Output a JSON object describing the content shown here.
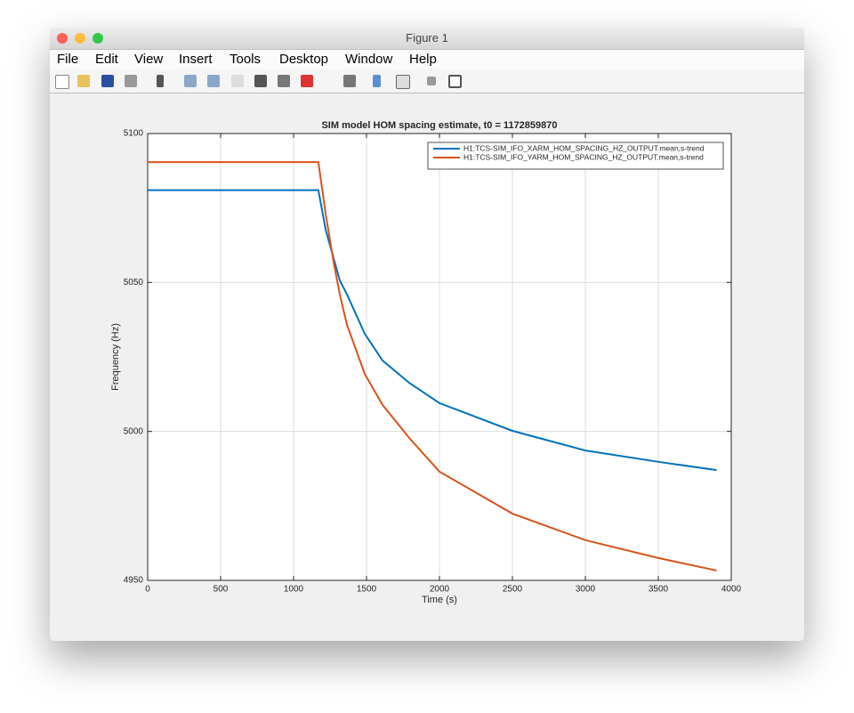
{
  "window": {
    "title": "Figure 1",
    "menu": [
      "File",
      "Edit",
      "View",
      "Insert",
      "Tools",
      "Desktop",
      "Window",
      "Help"
    ]
  },
  "chart_data": {
    "type": "line",
    "title": "SIM model HOM spacing estimate, t0 = 1172859870",
    "xlabel": "Time (s)",
    "ylabel": "Frequency (Hz)",
    "x": [
      0,
      1170,
      1220,
      1275,
      1317,
      1366,
      1488,
      1610,
      1793,
      2000,
      2500,
      3000,
      3500,
      3900
    ],
    "series": [
      {
        "name": "H1:TCS-SIM_IFO_XARM_HOM_SPACING_HZ_OUTPUT.mean,s-trend",
        "color": "#0072bd",
        "values": [
          5081,
          5081,
          5067.7,
          5058,
          5050.7,
          5046,
          5032.8,
          5023.8,
          5016.3,
          5009.5,
          5000.2,
          4993.6,
          4989.8,
          4987
        ]
      },
      {
        "name": "H1:TCS-SIM_IFO_YARM_HOM_SPACING_HZ_OUTPUT.mean,s-trend",
        "color": "#d95319",
        "values": [
          5090.4,
          5090.4,
          5073,
          5056.7,
          5046,
          5035.8,
          5019.3,
          5008.9,
          4997.8,
          4986.5,
          4972.4,
          4963.5,
          4957.5,
          4953.3
        ]
      }
    ],
    "xlim": [
      0,
      4000
    ],
    "xticks": [
      0,
      500,
      1000,
      1500,
      2000,
      2500,
      3000,
      3500,
      4000
    ],
    "ylim": [
      4950,
      5100
    ],
    "yticks": [
      4950,
      5000,
      5050,
      5100
    ],
    "grid": true,
    "legend": "upper-right"
  }
}
